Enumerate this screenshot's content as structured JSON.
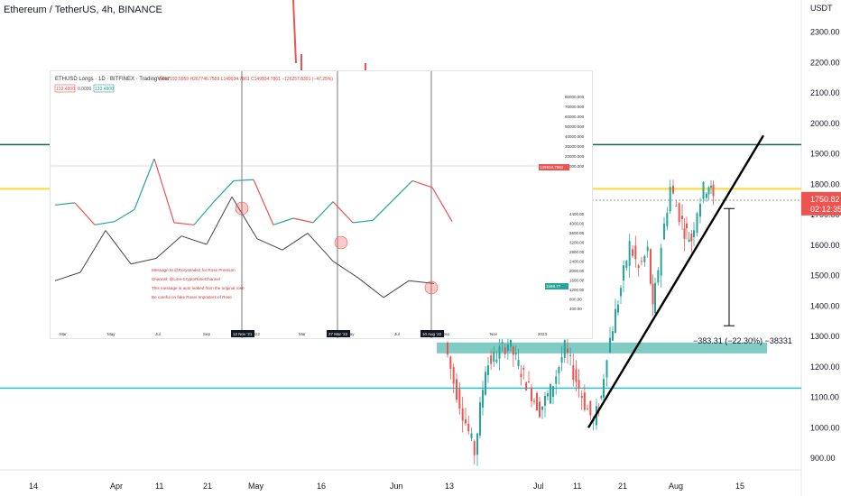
{
  "header": {
    "title": "Ethereum / TetherUS, 4h, BINANCE"
  },
  "colors": {
    "up": "#26a69a",
    "down": "#ef5350",
    "teal_line": "#26c6da",
    "dark_teal": "#1b5e56",
    "yellow": "#fdd835",
    "zone": "#80cbc4",
    "trend": "#000000"
  },
  "chart_data": [
    {
      "type": "candlestick",
      "title": "Ethereum / TetherUS, 4h, BINANCE",
      "ylabel": "USDT",
      "y_ticks": [
        900,
        1000,
        1100,
        1200,
        1300,
        1400,
        1500,
        1600,
        1700,
        1800,
        1900,
        2000,
        2100,
        2200,
        2300
      ],
      "x_ticks": [
        "14",
        "Apr",
        "11",
        "21",
        "May",
        "16",
        "Jun",
        "13",
        "Jul",
        "11",
        "21",
        "Aug",
        "15"
      ],
      "series": [
        {
          "name": "ETHUSDT",
          "values": [
            1280,
            1150,
            1050,
            920,
            1200,
            1280,
            1150,
            1060,
            1120,
            1260,
            1080,
            1020,
            1100,
            1250,
            1460,
            1600,
            1520,
            1580,
            1380,
            1600,
            1790,
            1700,
            1650,
            1620,
            1720,
            1780,
            1800,
            1750.82
          ]
        }
      ],
      "horizontal_levels": [
        {
          "value": 1930,
          "color": "#1b5e56"
        },
        {
          "value": 1785,
          "color": "#fdd835"
        },
        {
          "value": 1130,
          "color": "#26c6da"
        }
      ],
      "support_zone": {
        "from": 1250,
        "to": 1280
      },
      "trendline": {
        "from": 1000,
        "to": 1960
      },
      "measurement": {
        "label": "−383.31 (−22.30%) −38331",
        "from": 1720,
        "to": 1335
      },
      "last_price": {
        "value": "1750.82",
        "countdown": "02:12:35"
      }
    },
    {
      "type": "line",
      "title": "ETHUSD Longs · 1D · BITFINEX · TradingView",
      "ohlc_text": "O267192.5959 H267746.7559 L149934.7861 C149934.7861 −126257.8391 (−47.25%)",
      "legend_inputs": [
        "133.4800",
        "0.0000",
        "133.4800"
      ],
      "y_ticks": [
        "80000.000",
        "70000.000",
        "60000.000",
        "50000.000",
        "40000.000",
        "30000.000",
        "20000.000",
        "10000.000"
      ],
      "price_ticks": [
        "4400.00",
        "4000.00",
        "3600.00",
        "3200.00",
        "2800.00",
        "2400.00",
        "2000.00",
        "1600.00",
        "1200.00",
        "800.00",
        "400.00"
      ],
      "x_ticks": [
        "Mar",
        "May",
        "Jul",
        "Sep",
        "2022",
        "Mar",
        "May",
        "Jul",
        "Sep",
        "Nov",
        "2023"
      ],
      "event_dates": [
        "12 Nov '21",
        "27 Mar '22",
        "10 Aug '22"
      ],
      "series": [
        {
          "name": "ETHUSD Longs",
          "values": [
            30000,
            32000,
            12000,
            15000,
            26000,
            72000,
            14000,
            12000,
            33000,
            52000,
            53000,
            12000,
            18000,
            14000,
            33000,
            14000,
            16000,
            34000,
            52000,
            46000,
            15000
          ]
        },
        {
          "name": "ETHUSD",
          "values": [
            1700,
            2000,
            3500,
            2300,
            2500,
            3300,
            3000,
            4700,
            3200,
            2800,
            3400,
            2400,
            1800,
            1100,
            1700,
            1600
          ]
        }
      ],
      "watermark_lines": [
        "Message to @Roryozade2 for Rose Premium",
        "Channel: @Line-CryptoRoseChannel",
        "This message is auto leaked from the original rose",
        "Be careful on fake Rose/ Imposters of Rose"
      ],
      "price_badges": [
        "149934.7861",
        "1598.77"
      ]
    }
  ]
}
